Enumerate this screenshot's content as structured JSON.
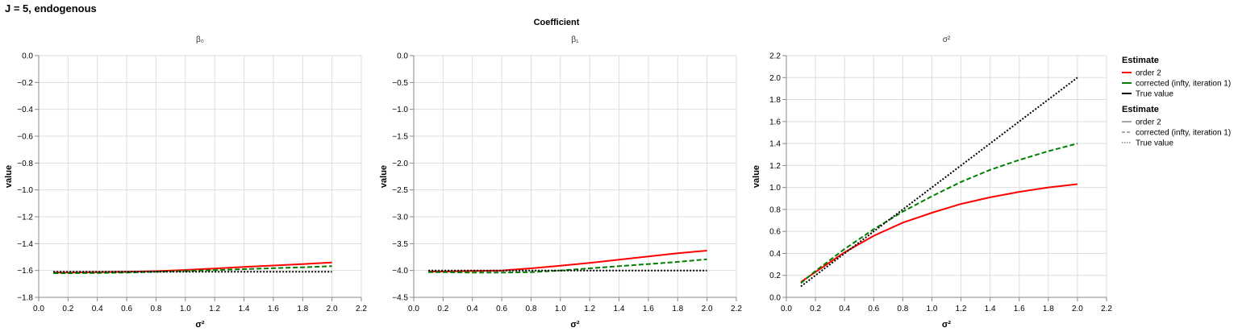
{
  "title": "J = 5, endogenous",
  "facet_header": "Coefficient",
  "colors": {
    "order2": "#ff0000",
    "corrected": "#008000",
    "true_value": "#000000",
    "grid": "#dddddd",
    "axis": "#888888"
  },
  "legend": {
    "color_title": "Estimate",
    "dash_title": "Estimate",
    "entries": [
      "order 2",
      "corrected (infty, iteration 1)",
      "True value"
    ]
  },
  "chart_data": [
    {
      "type": "line",
      "title": "β₀",
      "xlabel": "σ²",
      "ylabel": "value",
      "xlim": [
        0.0,
        2.2
      ],
      "ylim": [
        -1.8,
        0.0
      ],
      "xticks": [
        "0.0",
        "0.2",
        "0.4",
        "0.6",
        "0.8",
        "1.0",
        "1.2",
        "1.4",
        "1.6",
        "1.8",
        "2.0",
        "2.2"
      ],
      "yticks": [
        "0.0",
        "−0.2",
        "−0.4",
        "−0.6",
        "−0.8",
        "−1.0",
        "−1.2",
        "−1.4",
        "−1.6",
        "−1.8"
      ],
      "grid": true,
      "x": [
        0.1,
        0.2,
        0.4,
        0.6,
        0.8,
        1.0,
        1.2,
        1.4,
        1.6,
        1.8,
        2.0
      ],
      "series": [
        {
          "name": "order 2",
          "values": [
            -1.615,
            -1.615,
            -1.613,
            -1.61,
            -1.605,
            -1.596,
            -1.585,
            -1.574,
            -1.563,
            -1.552,
            -1.54
          ]
        },
        {
          "name": "corrected (infty, iteration 1)",
          "values": [
            -1.62,
            -1.62,
            -1.618,
            -1.615,
            -1.61,
            -1.603,
            -1.597,
            -1.59,
            -1.583,
            -1.576,
            -1.568
          ]
        },
        {
          "name": "True value",
          "values": [
            -1.61,
            -1.61,
            -1.61,
            -1.61,
            -1.61,
            -1.61,
            -1.61,
            -1.61,
            -1.61,
            -1.61,
            -1.61
          ]
        }
      ]
    },
    {
      "type": "line",
      "title": "β₁",
      "xlabel": "σ²",
      "ylabel": "value",
      "xlim": [
        0.0,
        2.2
      ],
      "ylim": [
        -4.5,
        0.0
      ],
      "xticks": [
        "0.0",
        "0.2",
        "0.4",
        "0.6",
        "0.8",
        "1.0",
        "1.2",
        "1.4",
        "1.6",
        "1.8",
        "2.0",
        "2.2"
      ],
      "yticks": [
        "0.0",
        "−0.5",
        "−1.0",
        "−1.5",
        "−2.0",
        "−2.5",
        "−3.0",
        "−3.5",
        "−4.0",
        "−4.5"
      ],
      "grid": true,
      "x": [
        0.1,
        0.2,
        0.4,
        0.6,
        0.8,
        1.0,
        1.2,
        1.4,
        1.6,
        1.8,
        2.0
      ],
      "series": [
        {
          "name": "order 2",
          "values": [
            -4.02,
            -4.02,
            -4.01,
            -4.0,
            -3.96,
            -3.91,
            -3.86,
            -3.8,
            -3.74,
            -3.68,
            -3.63
          ]
        },
        {
          "name": "corrected (infty, iteration 1)",
          "values": [
            -4.03,
            -4.03,
            -4.04,
            -4.04,
            -4.03,
            -4.0,
            -3.96,
            -3.92,
            -3.88,
            -3.84,
            -3.79
          ]
        },
        {
          "name": "True value",
          "values": [
            -4.0,
            -4.0,
            -4.0,
            -4.0,
            -4.0,
            -4.0,
            -4.0,
            -4.0,
            -4.0,
            -4.0,
            -4.0
          ]
        }
      ]
    },
    {
      "type": "line",
      "title": "σ²",
      "xlabel": "σ²",
      "ylabel": "value",
      "xlim": [
        0.0,
        2.2
      ],
      "ylim": [
        0.0,
        2.2
      ],
      "xticks": [
        "0.0",
        "0.2",
        "0.4",
        "0.6",
        "0.8",
        "1.0",
        "1.2",
        "1.4",
        "1.6",
        "1.8",
        "2.0",
        "2.2"
      ],
      "yticks": [
        "0.0",
        "0.2",
        "0.4",
        "0.6",
        "0.8",
        "1.0",
        "1.2",
        "1.4",
        "1.6",
        "1.8",
        "2.0",
        "2.2"
      ],
      "grid": true,
      "x": [
        0.1,
        0.2,
        0.4,
        0.6,
        0.8,
        1.0,
        1.2,
        1.4,
        1.6,
        1.8,
        2.0
      ],
      "series": [
        {
          "name": "order 2",
          "values": [
            0.14,
            0.23,
            0.41,
            0.56,
            0.68,
            0.77,
            0.85,
            0.91,
            0.96,
            1.0,
            1.03
          ]
        },
        {
          "name": "corrected (infty, iteration 1)",
          "values": [
            0.13,
            0.24,
            0.44,
            0.62,
            0.78,
            0.92,
            1.05,
            1.16,
            1.25,
            1.33,
            1.4
          ]
        },
        {
          "name": "True value",
          "values": [
            0.1,
            0.2,
            0.4,
            0.6,
            0.8,
            1.0,
            1.2,
            1.4,
            1.6,
            1.8,
            2.0
          ]
        }
      ]
    }
  ]
}
